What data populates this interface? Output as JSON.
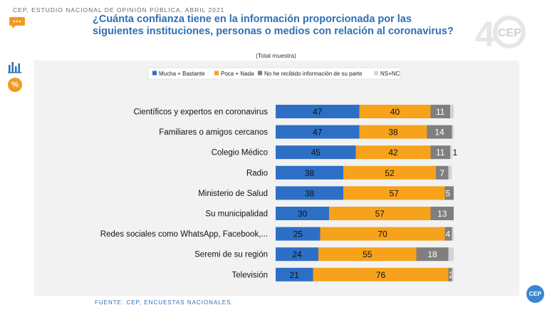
{
  "header": {
    "source_line": "CEP, ESTUDIO NACIONAL DE OPINIÓN PÚBLICA, ABRIL 2021"
  },
  "title": "¿Cuánta confianza tiene en la información proporcionada por las siguientes instituciones, personas o medios con relación al coronavirus?",
  "subtitle": "(Total muestra)",
  "side": {
    "percent_label": "%"
  },
  "logo": {
    "text": "CEP"
  },
  "footer": "FUENTE: CEP, ENCUESTAS NACIONALES.",
  "badge": "CEP",
  "colors": {
    "blue": "#2e6fc6",
    "orange": "#f7a21b",
    "gray": "#7f7f7f",
    "light": "#d4d4d4",
    "title": "#2f6fb4"
  },
  "chart_data": {
    "type": "bar",
    "orientation": "horizontal",
    "stacked": true,
    "title": "¿Cuánta confianza tiene en la información proporcionada por las siguientes instituciones, personas o medios con relación al coronavirus?",
    "subtitle": "(Total muestra)",
    "legend_position": "top",
    "categories": [
      "Científicos y expertos en coronavirus",
      "Familiares o amigos cercanos",
      "Colegio Médico",
      "Radio",
      "Ministerio de Salud",
      "Su municipalidad",
      "Redes sociales como WhatsApp, Facebook,...",
      "Seremi de su región",
      "Televisión"
    ],
    "series": [
      {
        "name": "Mucha + Bastante",
        "color": "#2e6fc6",
        "values": [
          47,
          47,
          45,
          38,
          38,
          30,
          25,
          24,
          21
        ],
        "labels": [
          "47",
          "47",
          "45",
          "38",
          "38",
          "30",
          "25",
          "24",
          "21"
        ]
      },
      {
        "name": "Poca + Nada",
        "color": "#f7a21b",
        "values": [
          40,
          38,
          42,
          52,
          57,
          57,
          70,
          55,
          76
        ],
        "labels": [
          "40",
          "38",
          "42",
          "52",
          "57",
          "57",
          "70",
          "55",
          "76"
        ]
      },
      {
        "name": "No he recibido información de su parte",
        "color": "#7f7f7f",
        "values": [
          11,
          14,
          11,
          7,
          5,
          13,
          4,
          18,
          2
        ],
        "labels": [
          "11",
          "14",
          "11",
          "7",
          "5",
          "13",
          "4",
          "18",
          "2"
        ]
      },
      {
        "name": "NS+NC",
        "color": "#d4d4d4",
        "values": [
          2,
          1,
          1,
          2,
          0,
          0,
          1,
          3,
          1
        ],
        "labels": [
          "",
          "",
          "1",
          "",
          "",
          "",
          "",
          "",
          ""
        ]
      }
    ],
    "xlim": [
      0,
      100
    ]
  }
}
